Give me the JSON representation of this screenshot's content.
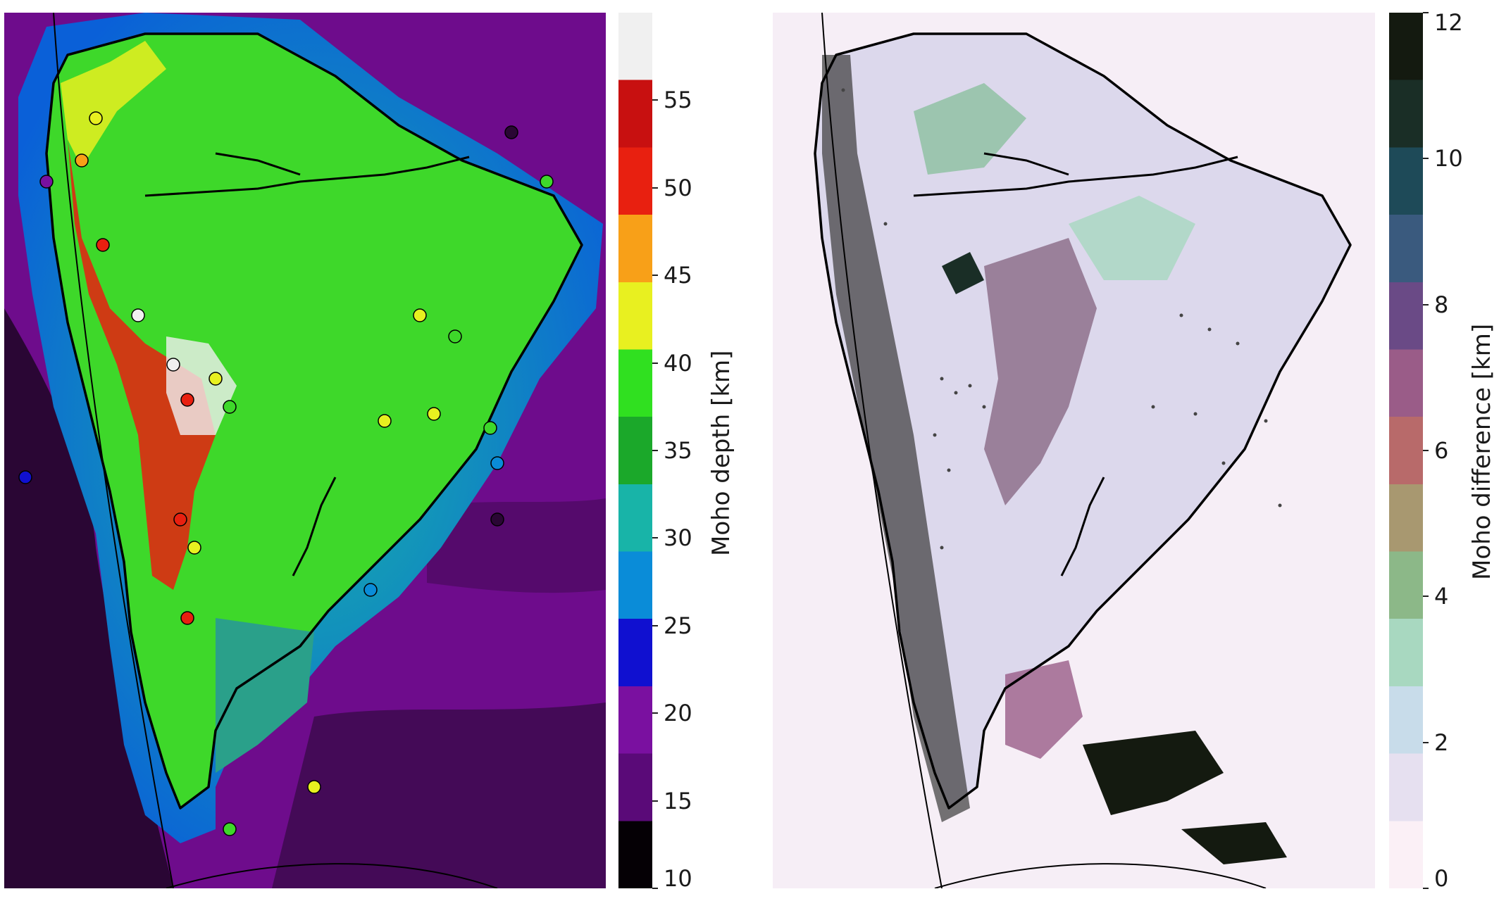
{
  "left_panel": {
    "colorbar": {
      "label": "Moho depth [km]",
      "ticks": [
        "10",
        "15",
        "20",
        "25",
        "30",
        "35",
        "40",
        "45",
        "50",
        "55"
      ],
      "range": [
        10,
        60
      ],
      "colormap": [
        "#050005",
        "#5a0a78",
        "#7a10a0",
        "#1010d0",
        "#0a8cd8",
        "#18b4a8",
        "#1ba82a",
        "#30e020",
        "#e8f020",
        "#f8a018",
        "#e82010",
        "#c81010",
        "#f0f0f0"
      ]
    }
  },
  "right_panel": {
    "colorbar": {
      "label": "Moho difference [km]",
      "ticks": [
        "0",
        "2",
        "4",
        "6",
        "8",
        "10",
        "12"
      ],
      "range": [
        0,
        12
      ],
      "colormap": [
        "#fbf0f6",
        "#e6e0f0",
        "#c8dcea",
        "#a8d8c0",
        "#8cb888",
        "#a89870",
        "#b86a6a",
        "#9a5c88",
        "#6a4a86",
        "#3a5a7e",
        "#1e4a58",
        "#1a2e26",
        "#141a10"
      ]
    }
  },
  "colors": {
    "ocean_deep": "#6e0c8c",
    "ocean_dark": "#2a0634",
    "continent": "#3ed82a",
    "coastline": "#000000",
    "diff_background": "#f6eef6"
  }
}
